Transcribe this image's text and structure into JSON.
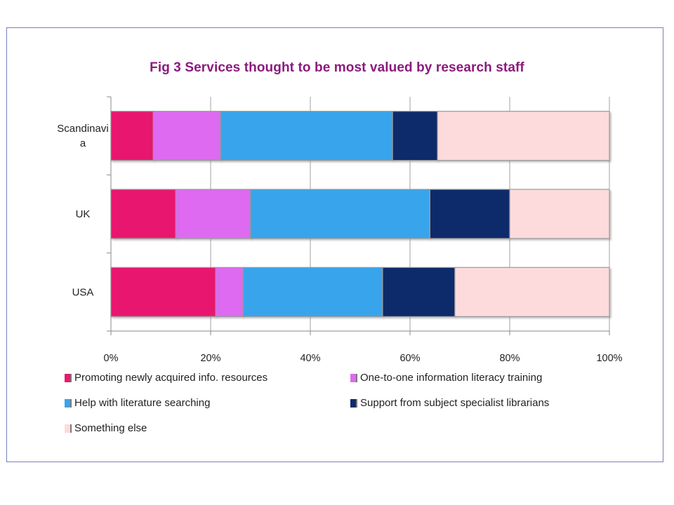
{
  "chart_data": {
    "type": "bar",
    "orientation": "horizontal",
    "stacked": "percent",
    "title": "Fig 3 Services thought to be most valued by research staff",
    "categories": [
      "Scandinavi a",
      "UK",
      "USA"
    ],
    "xlim": [
      0,
      100
    ],
    "x_ticks": [
      "0%",
      "20%",
      "40%",
      "60%",
      "80%",
      "100%"
    ],
    "grid": true,
    "legend_position": "bottom",
    "series": [
      {
        "name": "Promoting newly acquired info. resources",
        "color": "#e8196e",
        "values": [
          8.5,
          13,
          21
        ]
      },
      {
        "name": "One-to-one information literacy training",
        "color": "#dd6bf0",
        "values": [
          13.5,
          15,
          5.5
        ]
      },
      {
        "name": "Help with literature searching",
        "color": "#39a4ec",
        "values": [
          34.5,
          36,
          28
        ]
      },
      {
        "name": "Support from subject specialist librarians",
        "color": "#102a6a",
        "values": [
          9,
          16,
          14.5
        ]
      },
      {
        "name": "Something else",
        "color": "#fddbdd",
        "values": [
          34.5,
          20,
          31
        ]
      }
    ]
  }
}
